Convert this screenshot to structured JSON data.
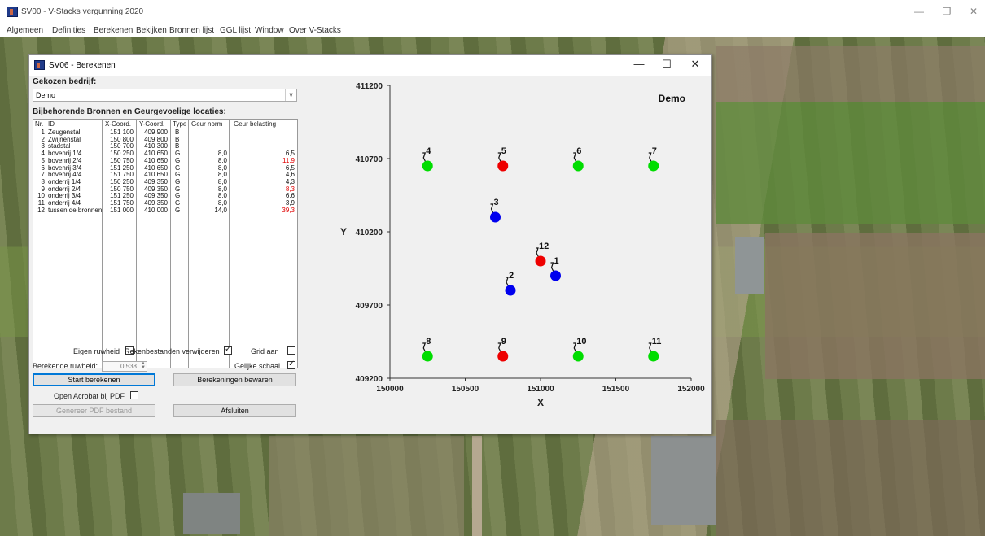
{
  "app": {
    "title": "SV00 - V-Stacks vergunning 2020",
    "menu": [
      "Algemeen",
      "Definities",
      "Berekenen",
      "Bekijken",
      "Bronnen lijst",
      "GGL lijst",
      "Window",
      "Over V-Stacks"
    ],
    "controls": {
      "minimize": "—",
      "restore": "❐",
      "close": "✕"
    }
  },
  "dialog": {
    "title": "SV06 - Berekenen",
    "controls": {
      "minimize": "—",
      "maximize": "☐",
      "close": "✕"
    },
    "company_label": "Gekozen bedrijf:",
    "company_value": "Demo",
    "list_label": "Bijbehorende Bronnen en Geurgevoelige locaties:",
    "columns": [
      "Nr.",
      "ID",
      "X-Coord.",
      "Y-Coord.",
      "Type",
      "Geur norm",
      "Geur belasting"
    ],
    "rows": [
      {
        "nr": "1",
        "id": "Zeugenstal",
        "x": "151 100",
        "y": "409 900",
        "type": "B",
        "norm": "",
        "load": ""
      },
      {
        "nr": "2",
        "id": "Zwijnenstal",
        "x": "150 800",
        "y": "409 800",
        "type": "B",
        "norm": "",
        "load": ""
      },
      {
        "nr": "3",
        "id": "stadstal",
        "x": "150 700",
        "y": "410 300",
        "type": "B",
        "norm": "",
        "load": ""
      },
      {
        "nr": "4",
        "id": "bovenrij 1/4",
        "x": "150 250",
        "y": "410 650",
        "type": "G",
        "norm": "8,0",
        "load": "6,5"
      },
      {
        "nr": "5",
        "id": "bovenrij 2/4",
        "x": "150 750",
        "y": "410 650",
        "type": "G",
        "norm": "8,0",
        "load": "11,9",
        "exceed": true
      },
      {
        "nr": "6",
        "id": "bovenrij 3/4",
        "x": "151 250",
        "y": "410 650",
        "type": "G",
        "norm": "8,0",
        "load": "6,5"
      },
      {
        "nr": "7",
        "id": "bovenrij 4/4",
        "x": "151 750",
        "y": "410 650",
        "type": "G",
        "norm": "8,0",
        "load": "4,6"
      },
      {
        "nr": "8",
        "id": "onderrij 1/4",
        "x": "150 250",
        "y": "409 350",
        "type": "G",
        "norm": "8,0",
        "load": "4,3"
      },
      {
        "nr": "9",
        "id": "onderrij 2/4",
        "x": "150 750",
        "y": "409 350",
        "type": "G",
        "norm": "8,0",
        "load": "8,3",
        "exceed": true
      },
      {
        "nr": "10",
        "id": "onderrij 3/4",
        "x": "151 250",
        "y": "409 350",
        "type": "G",
        "norm": "8,0",
        "load": "6,6"
      },
      {
        "nr": "11",
        "id": "onderrij 4/4",
        "x": "151 750",
        "y": "409 350",
        "type": "G",
        "norm": "8,0",
        "load": "3,9"
      },
      {
        "nr": "12",
        "id": "tussen de bronnen",
        "x": "151 000",
        "y": "410 000",
        "type": "G",
        "norm": "14,0",
        "load": "39,3",
        "exceed": true
      }
    ],
    "eigen_ruwheid_label": "Eigen ruwheid",
    "eigen_ruwheid_checked": false,
    "rekenbestanden_label": "Rekenbestanden verwijderen",
    "rekenbestanden_checked": true,
    "grid_label": "Grid aan",
    "grid_checked": false,
    "berekende_ruwheid_label": "Berekende ruwheid:",
    "berekende_ruwheid_value": "0.538",
    "gelijke_schaal_label": "Gelijke schaal",
    "gelijke_schaal_checked": true,
    "btn_start": "Start berekenen",
    "btn_save": "Berekeningen bewaren",
    "open_acrobat_label": "Open Acrobat bij PDF",
    "open_acrobat_checked": false,
    "btn_pdf": "Genereer PDF bestand",
    "btn_close": "Afsluiten"
  },
  "chart_data": {
    "type": "scatter",
    "title": "Demo",
    "xlabel": "X",
    "ylabel": "Y",
    "xlim": [
      150000,
      152000
    ],
    "ylim": [
      409200,
      411200
    ],
    "xticks": [
      150000,
      150500,
      151000,
      151500,
      152000
    ],
    "yticks": [
      409200,
      409700,
      410200,
      410700,
      411200
    ],
    "grid": false,
    "colors": {
      "bron": "#0000ee",
      "ok": "#00dd00",
      "exceed": "#ee0000"
    },
    "points": [
      {
        "label": "1",
        "x": 151100,
        "y": 409900,
        "kind": "bron"
      },
      {
        "label": "2",
        "x": 150800,
        "y": 409800,
        "kind": "bron"
      },
      {
        "label": "3",
        "x": 150700,
        "y": 410300,
        "kind": "bron"
      },
      {
        "label": "4",
        "x": 150250,
        "y": 410650,
        "kind": "ok"
      },
      {
        "label": "5",
        "x": 150750,
        "y": 410650,
        "kind": "exceed"
      },
      {
        "label": "6",
        "x": 151250,
        "y": 410650,
        "kind": "ok"
      },
      {
        "label": "7",
        "x": 151750,
        "y": 410650,
        "kind": "ok"
      },
      {
        "label": "8",
        "x": 150250,
        "y": 409350,
        "kind": "ok"
      },
      {
        "label": "9",
        "x": 150750,
        "y": 409350,
        "kind": "exceed"
      },
      {
        "label": "10",
        "x": 151250,
        "y": 409350,
        "kind": "ok"
      },
      {
        "label": "11",
        "x": 151750,
        "y": 409350,
        "kind": "ok"
      },
      {
        "label": "12",
        "x": 151000,
        "y": 410000,
        "kind": "exceed"
      }
    ]
  }
}
